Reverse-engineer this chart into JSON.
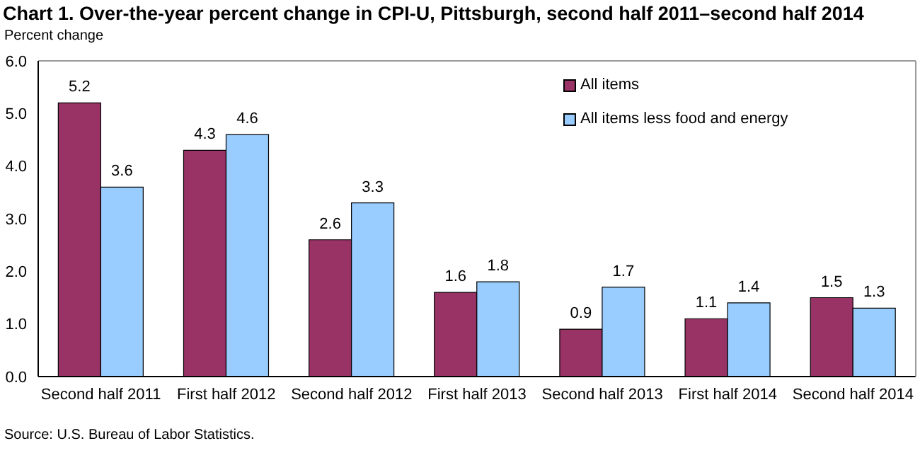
{
  "chart_data": {
    "type": "bar",
    "title": "Chart 1. Over-the-year percent change in CPI-U, Pittsburgh, second half 2011–second half 2014",
    "ylabel": "Percent change",
    "categories": [
      "Second half 2011",
      "First half 2012",
      "Second half 2012",
      "First half 2013",
      "Second half 2013",
      "First half 2014",
      "Second half 2014"
    ],
    "series": [
      {
        "name": "All items",
        "color": "#993366",
        "values": [
          5.2,
          4.3,
          2.6,
          1.6,
          0.9,
          1.1,
          1.5
        ]
      },
      {
        "name": "All items less food and energy",
        "color": "#99ccff",
        "values": [
          3.6,
          4.6,
          3.3,
          1.8,
          1.7,
          1.4,
          1.3
        ]
      }
    ],
    "ylim": [
      0,
      6
    ],
    "yticks": [
      {
        "value": 0,
        "label": "0.0"
      },
      {
        "value": 1,
        "label": "1.0"
      },
      {
        "value": 2,
        "label": "2.0"
      },
      {
        "value": 3,
        "label": "3.0"
      },
      {
        "value": 4,
        "label": "4.0"
      },
      {
        "value": 5,
        "label": "5.0"
      },
      {
        "value": 6,
        "label": "6.0"
      }
    ],
    "grid": false,
    "legend": "top right",
    "data_labels": true,
    "annotations": [
      "Source: U.S. Bureau of Labor Statistics."
    ]
  }
}
